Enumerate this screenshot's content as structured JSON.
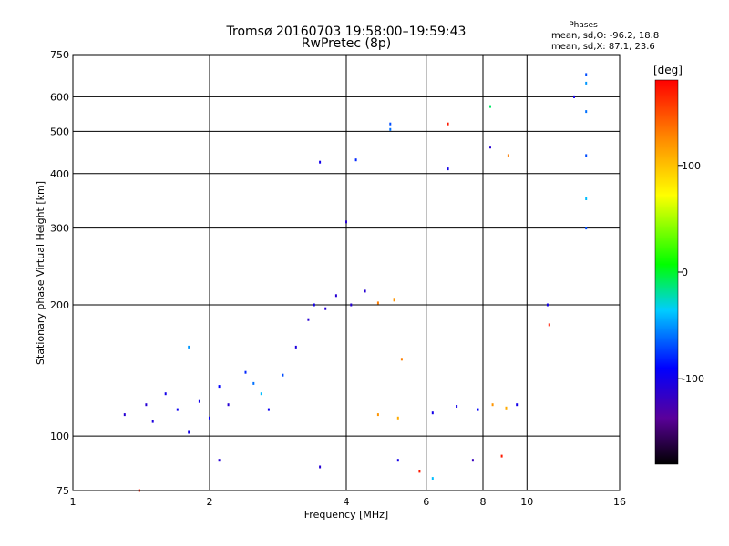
{
  "header": {
    "title_line1": "Tromsø 20160703 19:58:00–19:59:43",
    "title_line2": "RwPretec (8p)",
    "phase_heading": "Phases",
    "phase_o_stats": "mean, sd,O: -96.2, 18.8",
    "phase_x_stats": "mean, sd,X: 87.1, 23.6"
  },
  "colorbar": {
    "unit_label": "[deg]",
    "ticks": [
      "100",
      "0",
      "-100"
    ],
    "tick_values": [
      100,
      0,
      -100
    ],
    "range": [
      -180,
      180
    ]
  },
  "chart_data": {
    "type": "scatter",
    "title": "",
    "xlabel": "Frequency [MHz]",
    "ylabel": "Stationary phase Virtual Height [km]",
    "x_scale": "log",
    "y_scale": "log",
    "xlim": [
      1,
      16
    ],
    "ylim": [
      75,
      750
    ],
    "x_ticks": [
      1,
      2,
      4,
      6,
      8,
      10,
      16
    ],
    "x_tick_labels": [
      "1",
      "2",
      "4",
      "6",
      "8",
      "10",
      "16"
    ],
    "y_ticks": [
      75,
      100,
      200,
      300,
      400,
      500,
      600,
      750
    ],
    "y_tick_labels": [
      "75",
      "100",
      "200",
      "300",
      "400",
      "500",
      "600",
      "750"
    ],
    "grid": true,
    "color_variable": "phase [deg]",
    "points": [
      [
        1.3,
        112,
        -110
      ],
      [
        1.45,
        118,
        -110
      ],
      [
        1.5,
        108,
        -105
      ],
      [
        1.6,
        125,
        -100
      ],
      [
        1.7,
        115,
        -95
      ],
      [
        1.8,
        102,
        -100
      ],
      [
        1.9,
        120,
        -100
      ],
      [
        2.0,
        110,
        -95
      ],
      [
        2.1,
        130,
        -90
      ],
      [
        2.2,
        118,
        -110
      ],
      [
        2.4,
        140,
        -80
      ],
      [
        2.5,
        132,
        -60
      ],
      [
        2.6,
        125,
        -40
      ],
      [
        2.7,
        115,
        -95
      ],
      [
        2.9,
        138,
        -70
      ],
      [
        3.1,
        160,
        -105
      ],
      [
        3.3,
        185,
        -110
      ],
      [
        3.4,
        200,
        -100
      ],
      [
        3.6,
        196,
        -110
      ],
      [
        3.8,
        210,
        -110
      ],
      [
        4.1,
        200,
        -110
      ],
      [
        4.4,
        215,
        -110
      ],
      [
        4.7,
        202,
        130
      ],
      [
        5.1,
        205,
        120
      ],
      [
        5.3,
        150,
        130
      ],
      [
        4.7,
        112,
        120
      ],
      [
        5.2,
        110,
        110
      ],
      [
        6.2,
        113,
        -100
      ],
      [
        7.0,
        117,
        -100
      ],
      [
        7.8,
        115,
        -90
      ],
      [
        8.4,
        118,
        120
      ],
      [
        9.0,
        116,
        110
      ],
      [
        9.5,
        118,
        -100
      ],
      [
        1.8,
        160,
        -50
      ],
      [
        3.5,
        425,
        -100
      ],
      [
        4.0,
        310,
        -110
      ],
      [
        4.2,
        430,
        -80
      ],
      [
        5.0,
        520,
        -70
      ],
      [
        5.0,
        505,
        -60
      ],
      [
        6.7,
        520,
        170
      ],
      [
        6.7,
        410,
        -100
      ],
      [
        8.3,
        570,
        -10
      ],
      [
        8.3,
        460,
        -110
      ],
      [
        9.1,
        440,
        130
      ],
      [
        11.1,
        200,
        -100
      ],
      [
        11.2,
        180,
        170
      ],
      [
        12.7,
        600,
        -100
      ],
      [
        13.5,
        675,
        -70
      ],
      [
        13.5,
        645,
        -50
      ],
      [
        13.5,
        555,
        -60
      ],
      [
        13.5,
        440,
        -70
      ],
      [
        13.5,
        350,
        -40
      ],
      [
        13.5,
        300,
        -70
      ],
      [
        1.4,
        75,
        170
      ],
      [
        2.1,
        88,
        -110
      ],
      [
        3.5,
        85,
        -110
      ],
      [
        5.2,
        88,
        -100
      ],
      [
        5.8,
        83,
        170
      ],
      [
        6.2,
        80,
        -40
      ],
      [
        8.8,
        90,
        170
      ],
      [
        7.6,
        88,
        -120
      ]
    ]
  }
}
